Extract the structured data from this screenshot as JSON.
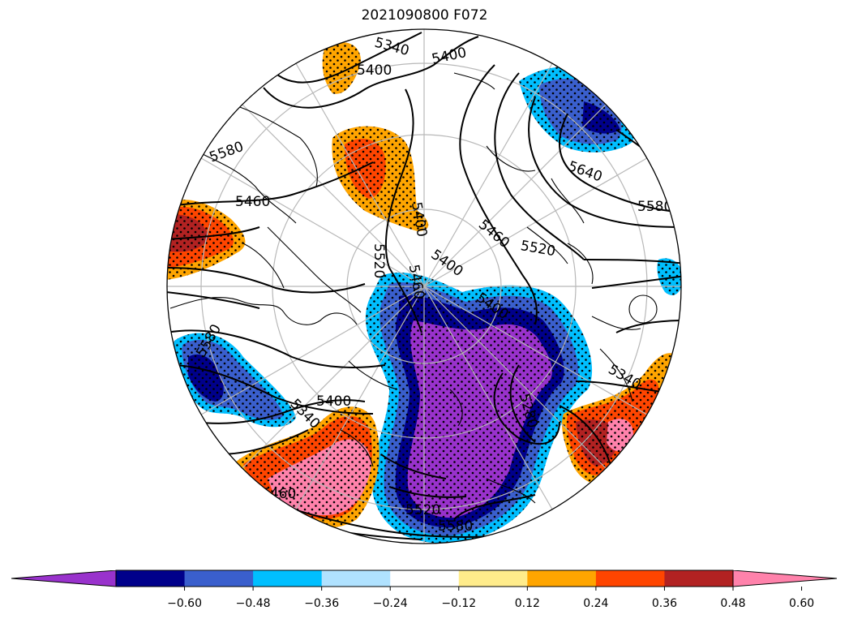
{
  "title": "2021090800 F072",
  "colorbar": {
    "colors": [
      "#9932CC",
      "#00008B",
      "#3A5FCD",
      "#00BFFF",
      "#B0E2FF",
      "#FFFFFF",
      "#FFEC8B",
      "#FFA500",
      "#FF4500",
      "#B22222",
      "#FF82AB"
    ],
    "ticks": [
      "−0.60",
      "−0.48",
      "−0.36",
      "−0.24",
      "−0.12",
      "0.12",
      "0.24",
      "0.36",
      "0.48",
      "0.60"
    ],
    "extend": "both"
  },
  "contour_labels": [
    "5340",
    "5400",
    "5400",
    "5640",
    "5580",
    "5460",
    "5520",
    "5400",
    "5520",
    "5460",
    "5400",
    "5400",
    "5340",
    "5400",
    "5280",
    "5340",
    "5460",
    "5520",
    "5580",
    "5580",
    "5460",
    "5580"
  ],
  "anomaly_regions": [
    {
      "name": "north-pacific-positive",
      "value": 0.36
    },
    {
      "name": "alaska-positive",
      "value": 0.36
    },
    {
      "name": "western-europe-positive",
      "value": 0.48
    },
    {
      "name": "siberia-negative",
      "value": -0.6
    },
    {
      "name": "russia-arctic-negative",
      "value": -0.6
    },
    {
      "name": "north-atlantic-negative",
      "value": -0.48
    },
    {
      "name": "labrador-negative",
      "value": -0.48
    },
    {
      "name": "canada-positive",
      "value": 0.6
    },
    {
      "name": "nw-pacific-positive",
      "value": 0.6
    },
    {
      "name": "nw-pacific-negative",
      "value": -0.36
    }
  ]
}
